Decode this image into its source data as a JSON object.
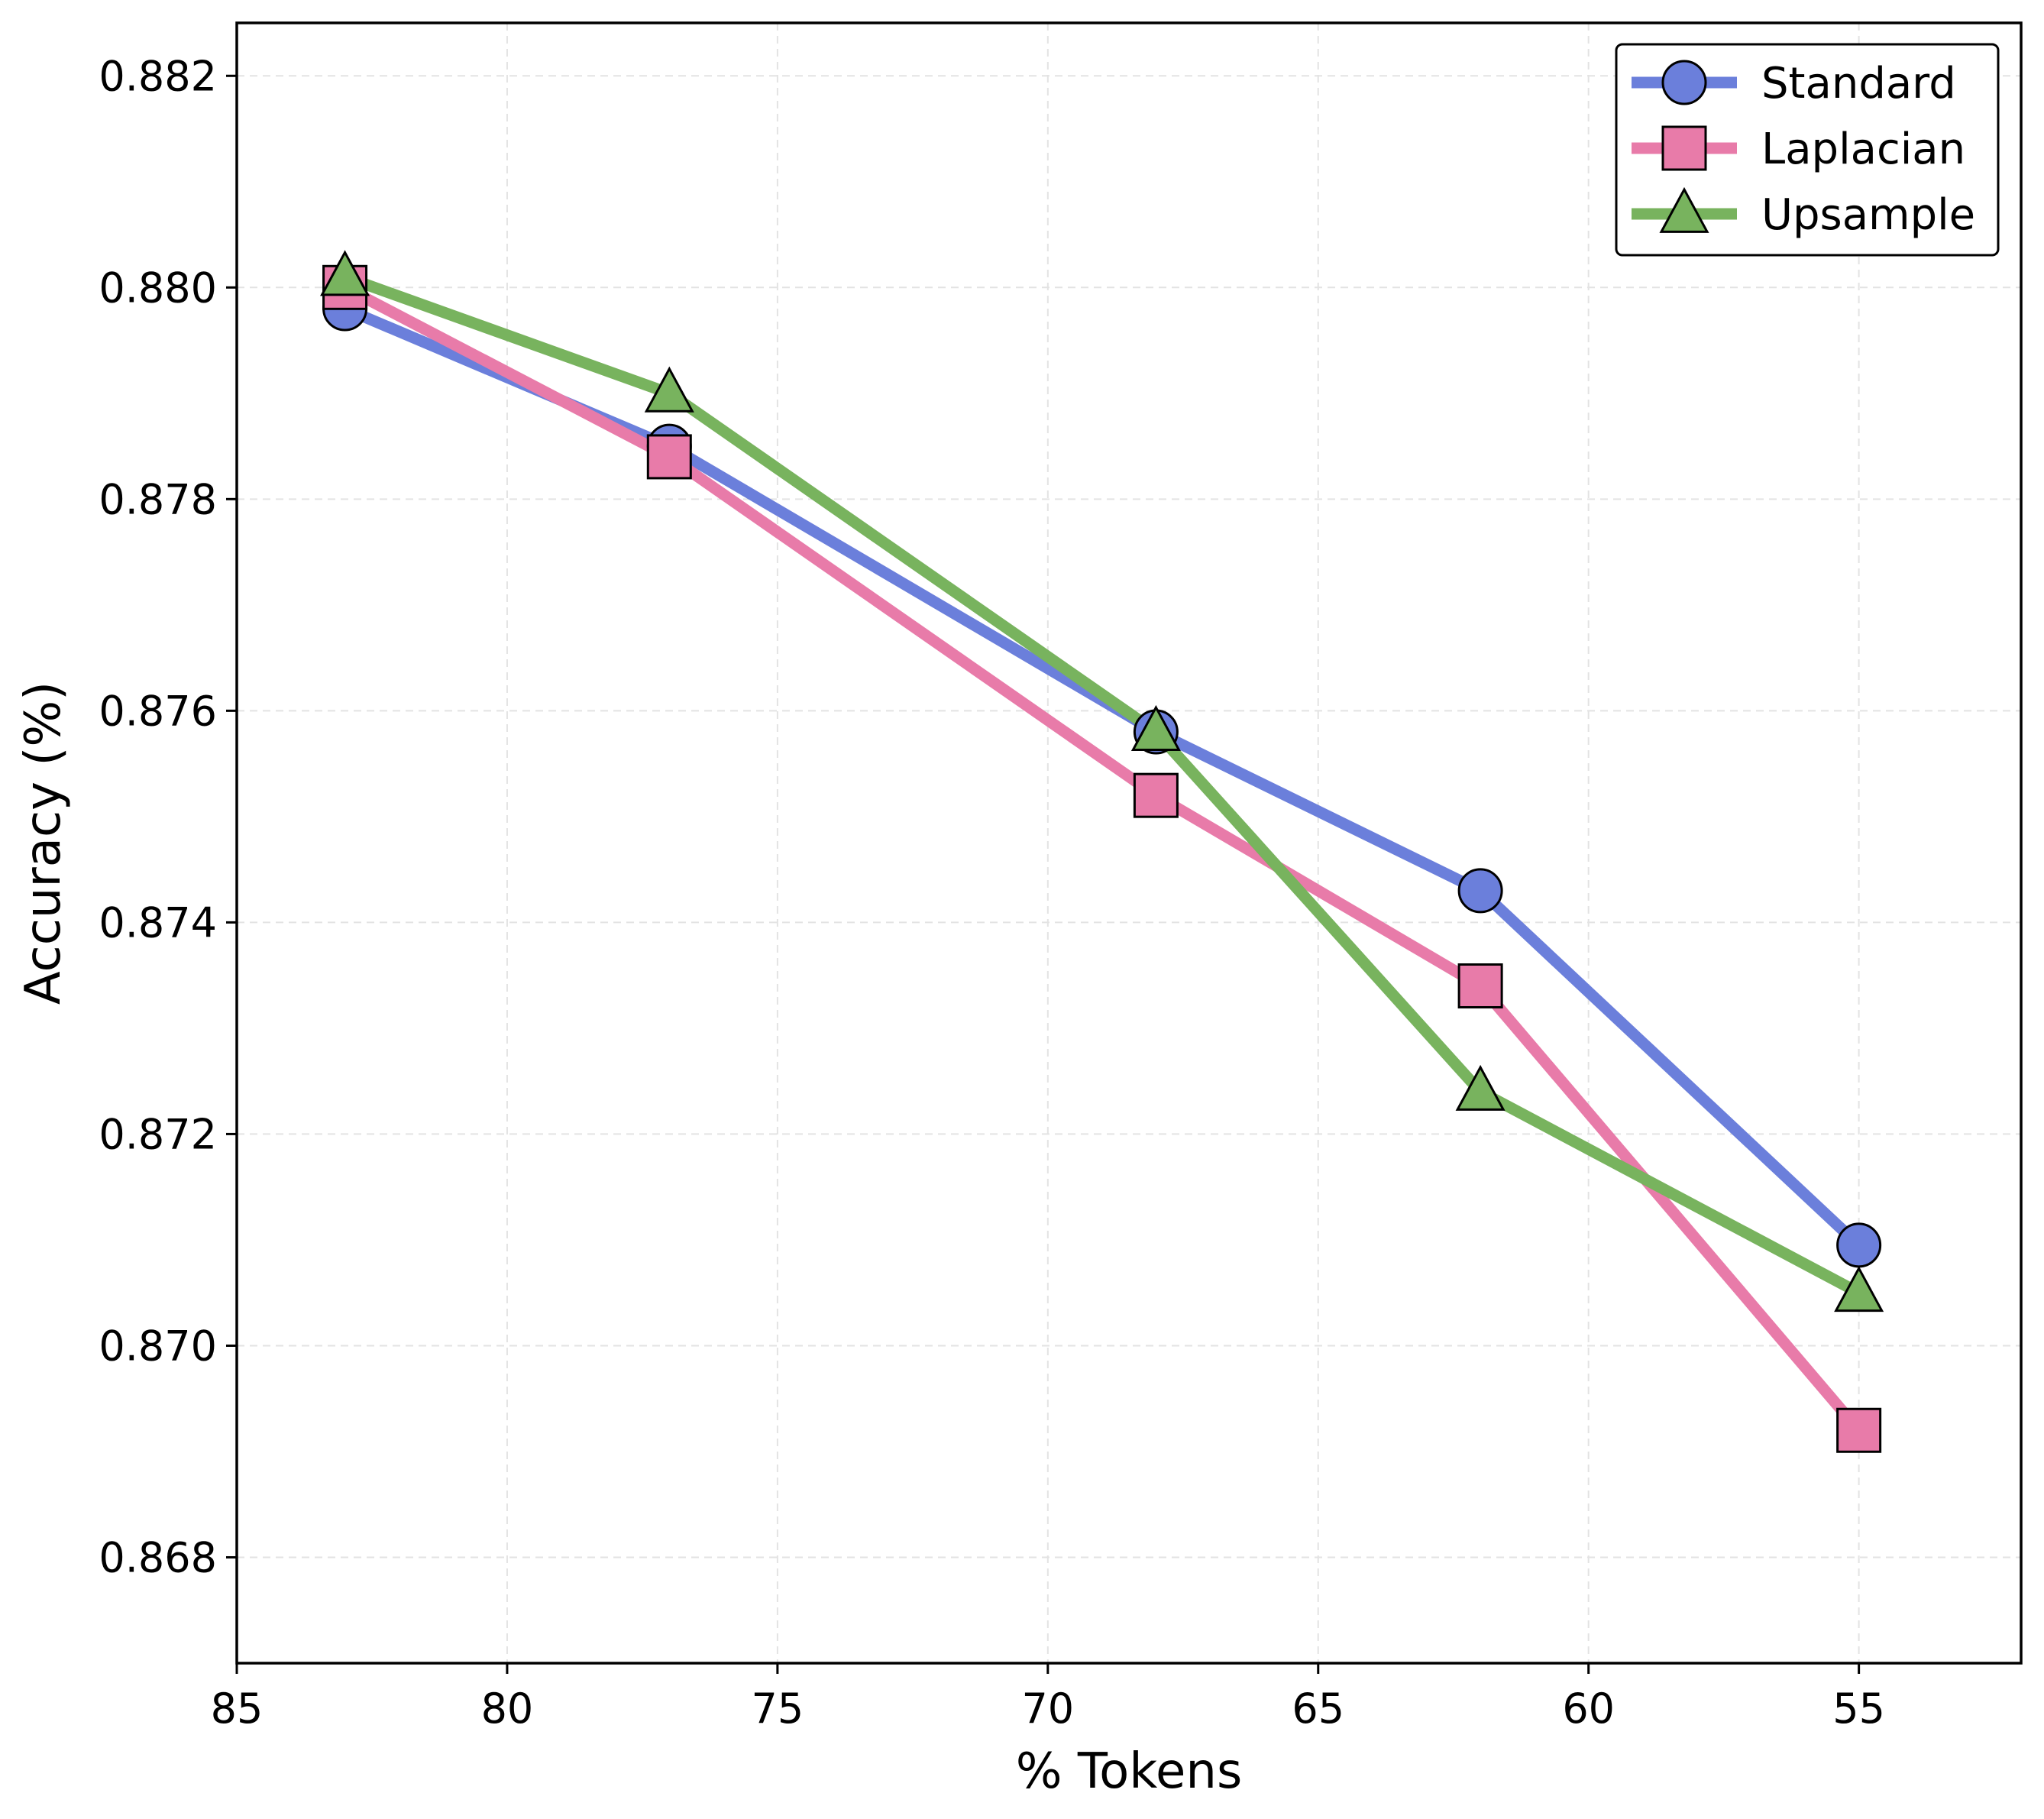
{
  "chart_data": {
    "type": "line",
    "title": "",
    "xlabel": "% Tokens",
    "ylabel": "Accuracy (%)",
    "x_inverted": true,
    "xlim": [
      85,
      52
    ],
    "ylim": [
      0.867,
      0.8825
    ],
    "x_ticks": [
      85,
      80,
      75,
      70,
      65,
      60,
      55
    ],
    "x_tick_labels": [
      "85",
      "80",
      "75",
      "70",
      "65",
      "60",
      "55"
    ],
    "y_ticks": [
      0.868,
      0.87,
      0.872,
      0.874,
      0.876,
      0.878,
      0.88,
      0.882
    ],
    "y_tick_labels": [
      "0.868",
      "0.870",
      "0.872",
      "0.874",
      "0.876",
      "0.878",
      "0.880",
      "0.882"
    ],
    "grid": true,
    "legend_position": "top-right",
    "series": [
      {
        "name": "Standard",
        "color": "#6b7fdb",
        "marker": "circle",
        "x": [
          83,
          77,
          68,
          62,
          55
        ],
        "values": [
          0.8798,
          0.8785,
          0.8758,
          0.8743,
          0.87095
        ]
      },
      {
        "name": "Laplacian",
        "color": "#e87ba9",
        "marker": "square",
        "x": [
          83,
          77,
          68,
          62,
          55
        ],
        "values": [
          0.88,
          0.8784,
          0.8752,
          0.8734,
          0.8692
        ]
      },
      {
        "name": "Upsample",
        "color": "#78b35e",
        "marker": "triangle",
        "x": [
          83,
          77,
          68,
          62,
          55
        ],
        "values": [
          0.8801,
          0.879,
          0.8758,
          0.8724,
          0.8705
        ]
      }
    ]
  }
}
